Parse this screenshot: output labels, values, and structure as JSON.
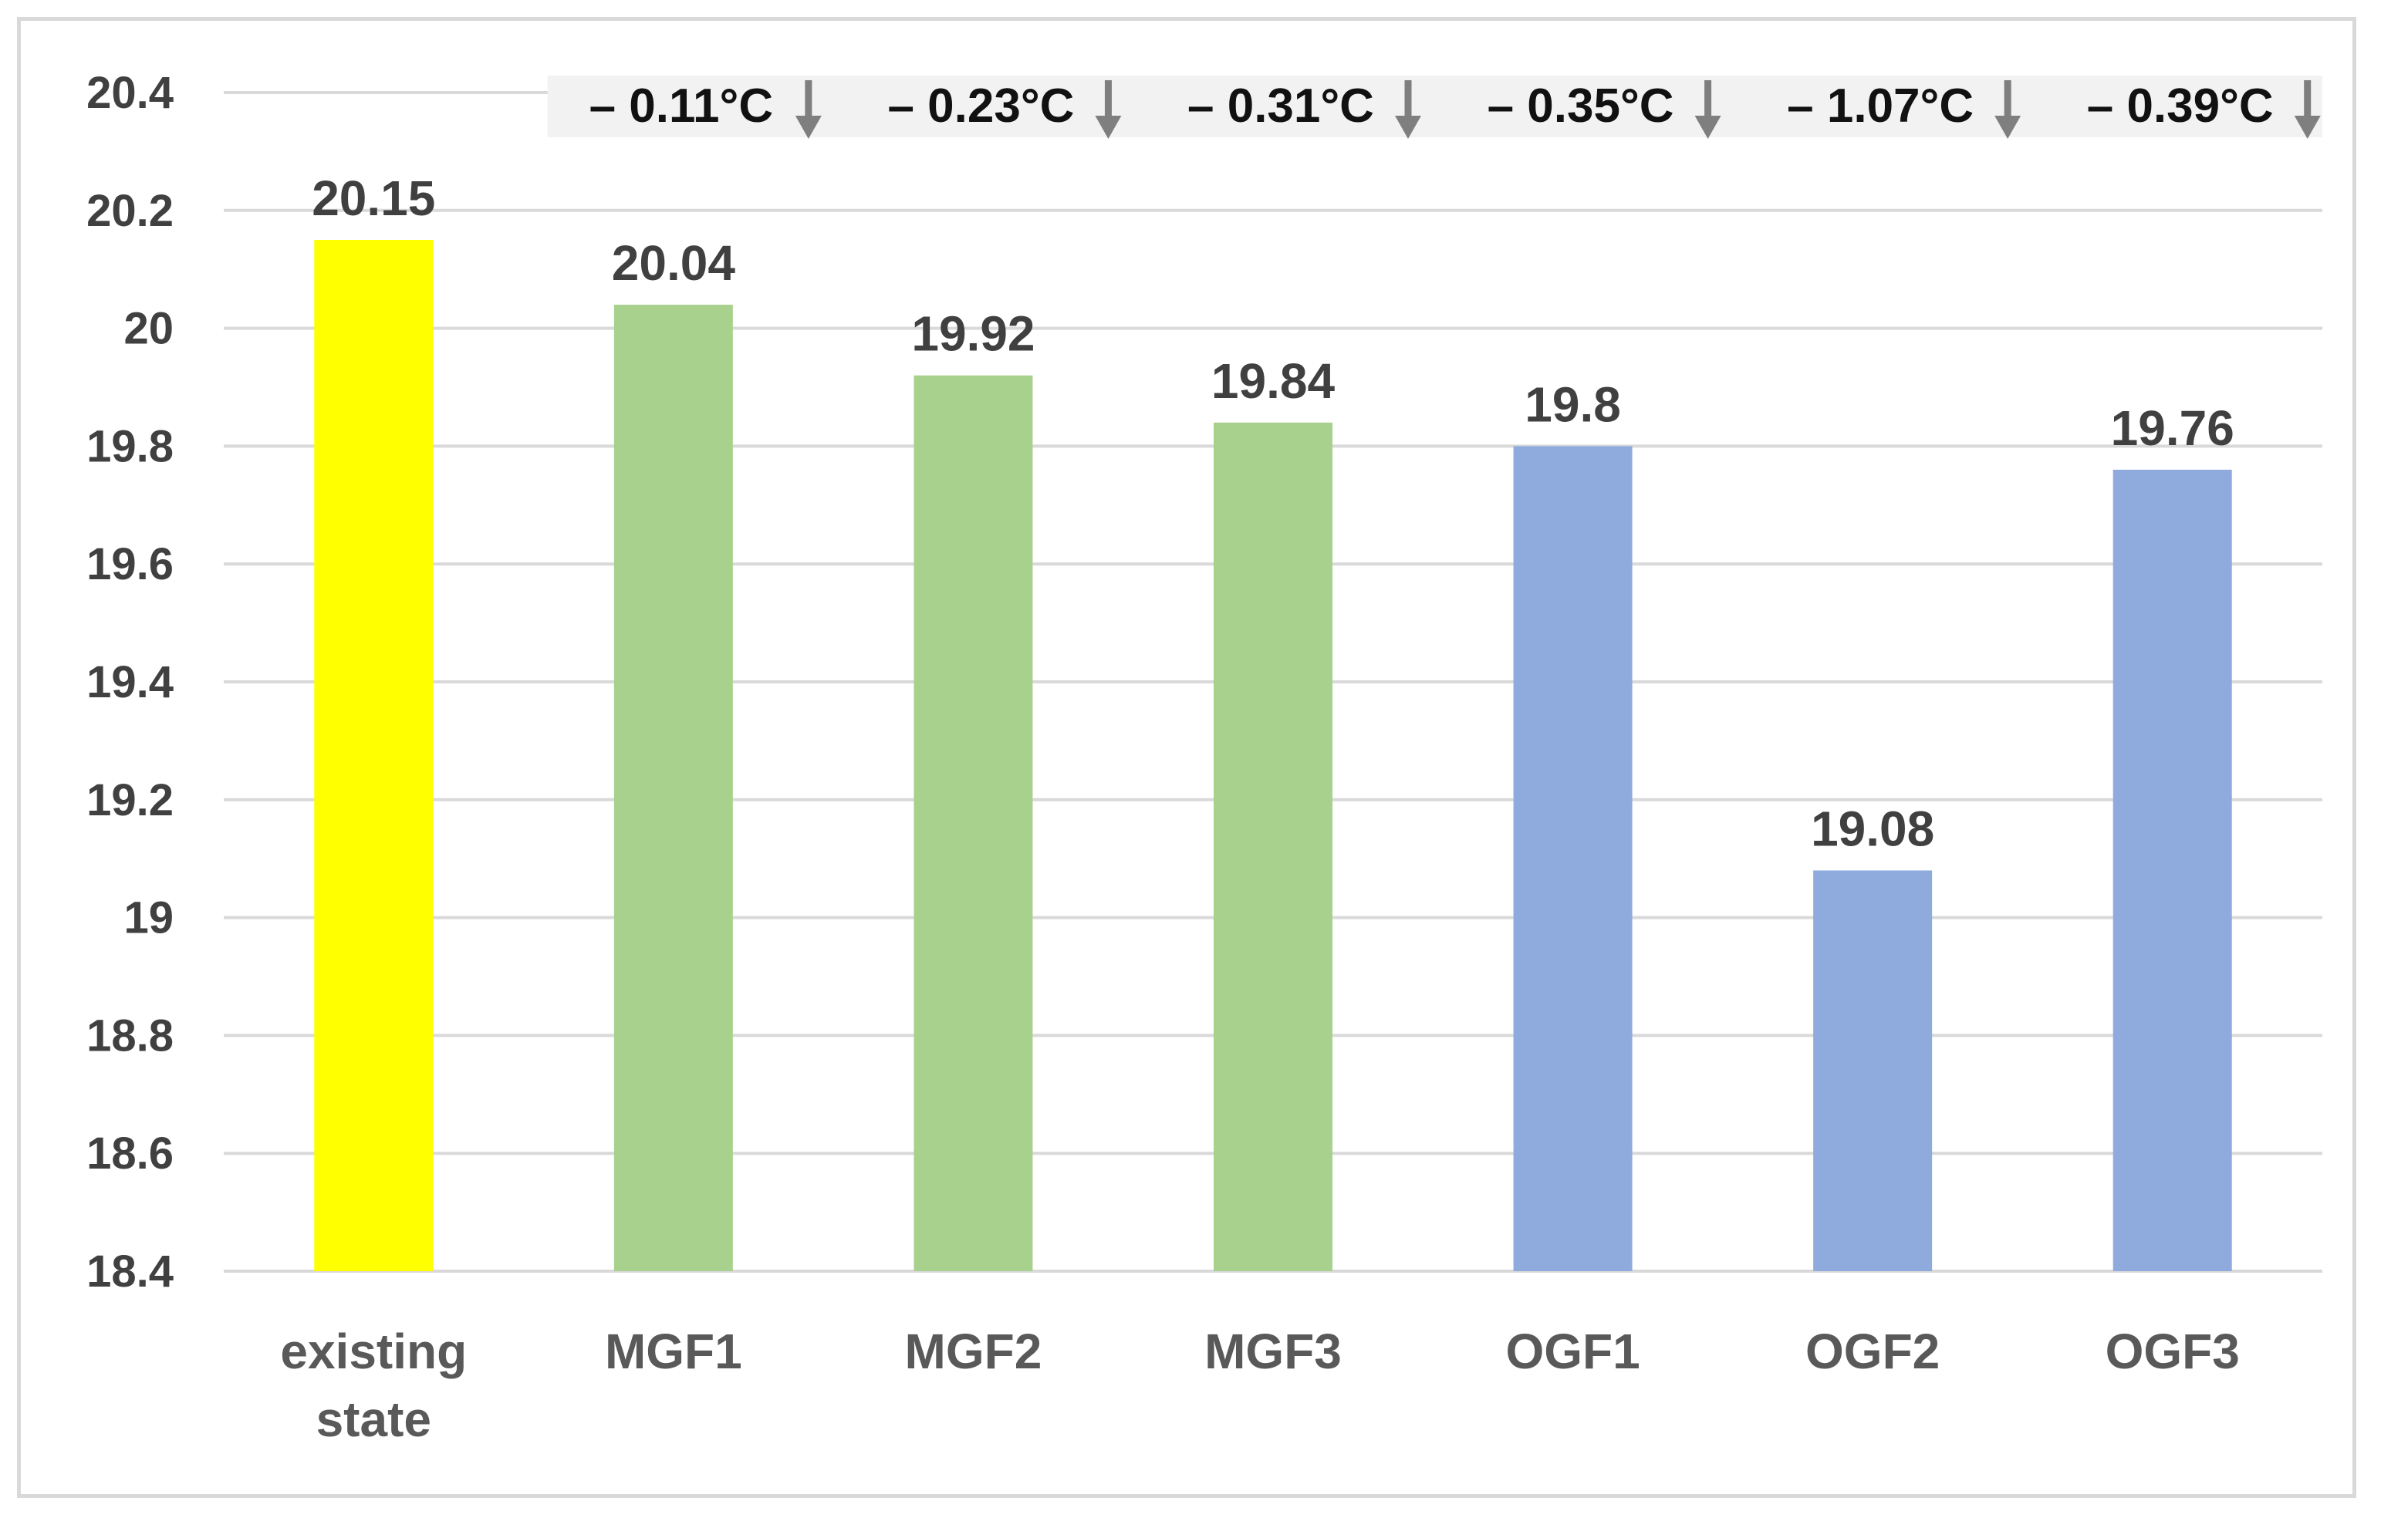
{
  "chart_data": {
    "type": "bar",
    "categories": [
      "existing state",
      "MGF1",
      "MGF2",
      "MGF3",
      "OGF1",
      "OGF2",
      "OGF3"
    ],
    "values": [
      20.15,
      20.04,
      19.92,
      19.84,
      19.8,
      19.08,
      19.76
    ],
    "data_labels": [
      "20.15",
      "20.04",
      "19.92",
      "19.84",
      "19.8",
      "19.08",
      "19.76"
    ],
    "bar_colors": [
      "#ffff00",
      "#a9d18e",
      "#a9d18e",
      "#a9d18e",
      "#8faadc",
      "#8faadc",
      "#8faadc"
    ],
    "differences": [
      {
        "category": "MGF1",
        "label": "– 0.11°C"
      },
      {
        "category": "MGF2",
        "label": "– 0.23°C"
      },
      {
        "category": "MGF3",
        "label": "– 0.31°C"
      },
      {
        "category": "OGF1",
        "label": "– 0.35°C"
      },
      {
        "category": "OGF2",
        "label": "– 1.07°C"
      },
      {
        "category": "OGF3",
        "label": "– 0.39°C"
      }
    ],
    "difference_arrow_color": "#7f7f7f",
    "difference_band_color": "#f2f2f2",
    "yticks": [
      "18.4",
      "18.6",
      "18.8",
      "19",
      "19.2",
      "19.4",
      "19.6",
      "19.8",
      "20",
      "20.2",
      "20.4"
    ],
    "ylim": [
      18.4,
      20.4
    ],
    "grid": true,
    "gridline_color": "#d9d9d9",
    "legend": "none"
  }
}
